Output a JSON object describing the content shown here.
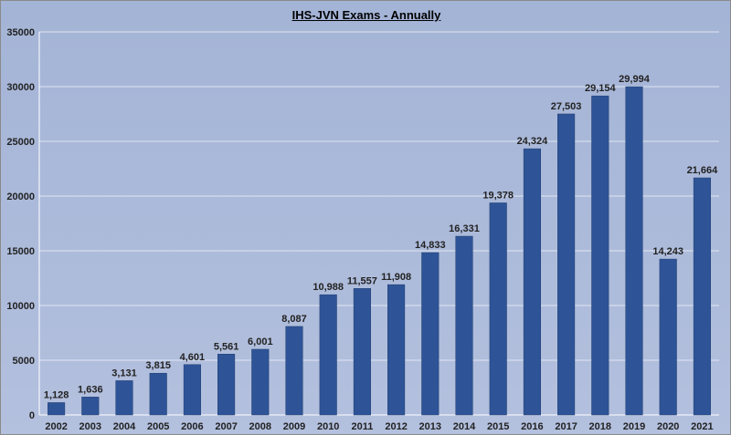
{
  "chart_data": {
    "type": "bar",
    "title": "IHS-JVN Exams - Annually",
    "xlabel": "",
    "ylabel": "",
    "categories": [
      "2002",
      "2003",
      "2004",
      "2005",
      "2006",
      "2007",
      "2008",
      "2009",
      "2010",
      "2011",
      "2012",
      "2013",
      "2014",
      "2015",
      "2016",
      "2017",
      "2018",
      "2019",
      "2020",
      "2021"
    ],
    "values": [
      1128,
      1636,
      3131,
      3815,
      4601,
      5561,
      6001,
      8087,
      10988,
      11557,
      11908,
      14833,
      16331,
      19378,
      24324,
      27503,
      29154,
      29994,
      14243,
      21664
    ],
    "data_labels": [
      "1,128",
      "1,636",
      "3,131",
      "3,815",
      "4,601",
      "5,561",
      "6,001",
      "8,087",
      "10,988",
      "11,557",
      "11,908",
      "14,833",
      "16,331",
      "19,378",
      "24,324",
      "27,503",
      "29,154",
      "29,994",
      "14,243",
      "21,664"
    ],
    "yticks": [
      "0",
      "5000",
      "10000",
      "15000",
      "20000",
      "25000",
      "30000",
      "35000"
    ],
    "ylim": [
      0,
      35000
    ],
    "grid": true,
    "legend": "none",
    "colors": {
      "bar": "#2e5497",
      "bar_edge": "#1f3c70",
      "grid": "#dfe5f2",
      "axis": "#ffffff"
    }
  }
}
